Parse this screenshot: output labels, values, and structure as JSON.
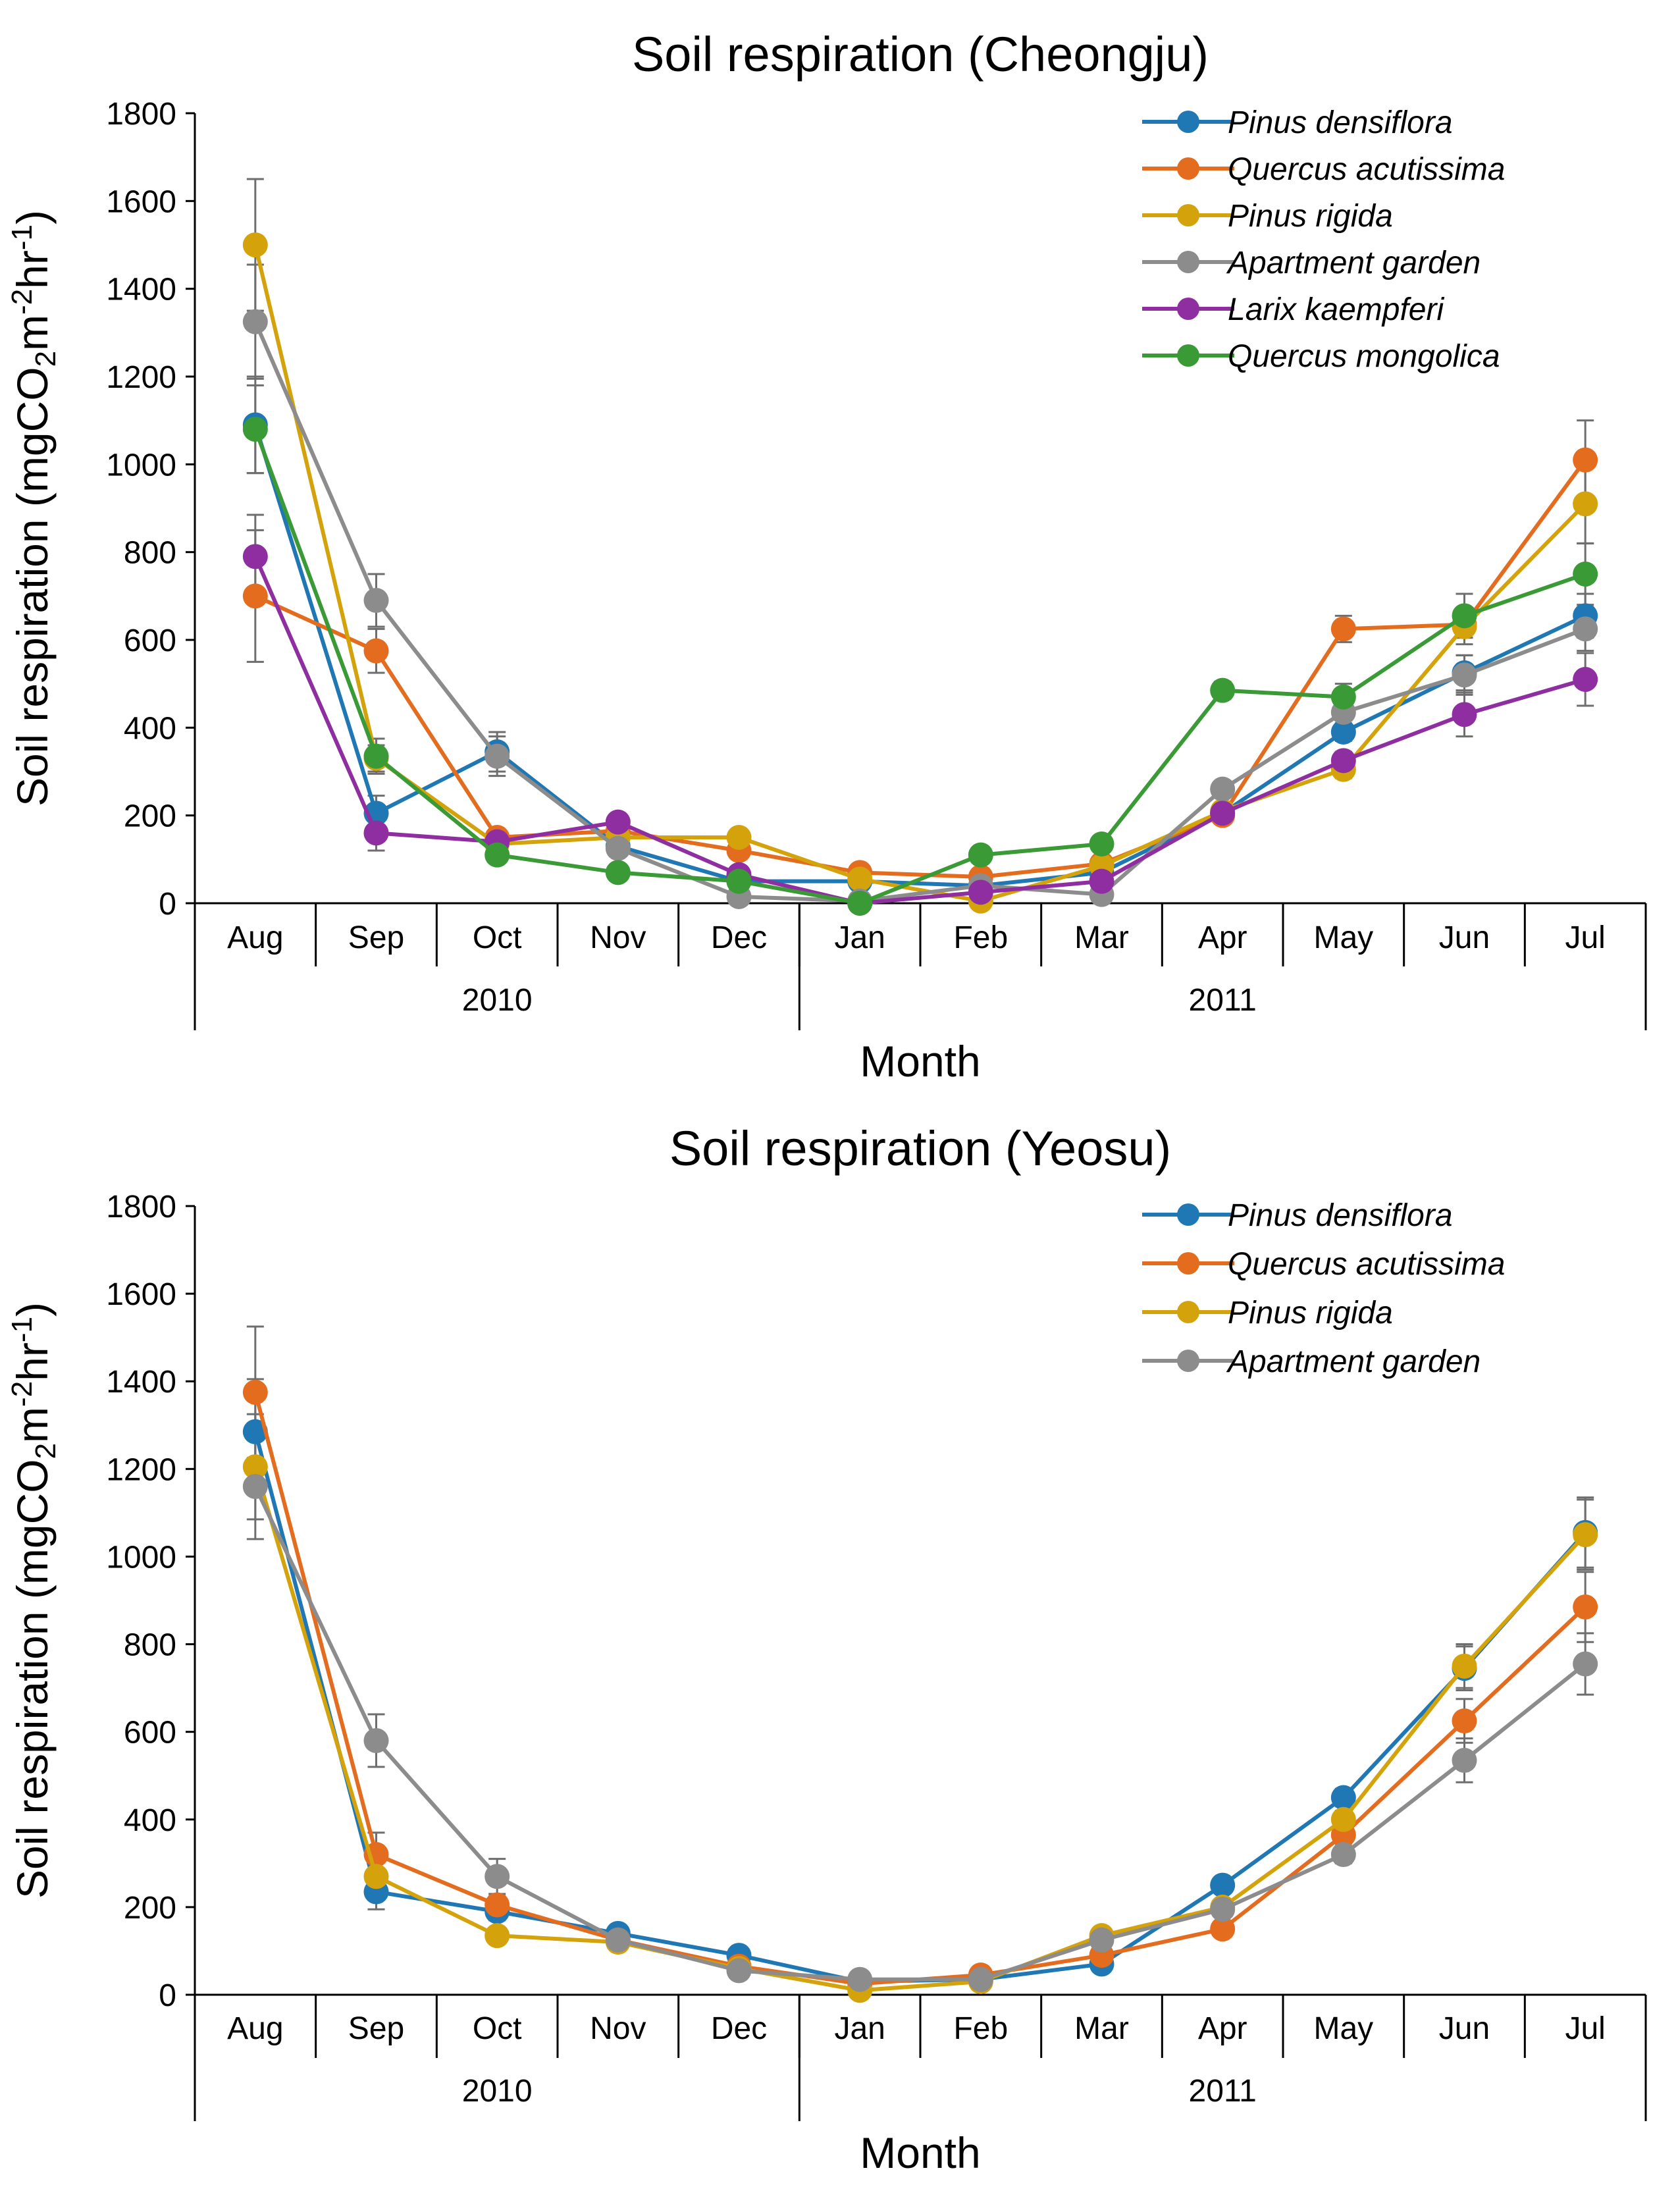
{
  "chart_data": [
    {
      "type": "line",
      "title": "Soil respiration (Cheongju)",
      "ylabel_main": "Soil respiration (mgCO",
      "ylabel_sub": "2",
      "ylabel_m": "m",
      "ylabel_sup1": "-2",
      "ylabel_hr": "hr",
      "ylabel_sup2": "-1",
      "ylabel_close": ")",
      "xlabel": "Month",
      "ylim": [
        0,
        1800
      ],
      "yticks": [
        "0",
        "200",
        "400",
        "600",
        "800",
        "1000",
        "1200",
        "1400",
        "1600",
        "1800"
      ],
      "categories": [
        "Aug",
        "Sep",
        "Oct",
        "Nov",
        "Dec",
        "Jan",
        "Feb",
        "Mar",
        "Apr",
        "May",
        "Jun",
        "Jul"
      ],
      "years": [
        {
          "label": "2010",
          "months": 5
        },
        {
          "label": "2011",
          "months": 7
        }
      ],
      "legend_position": "top-right",
      "series": [
        {
          "name": "Pinus densiflora",
          "color": "#1f77b4",
          "values": [
            1090,
            205,
            345,
            130,
            50,
            50,
            40,
            70,
            205,
            390,
            525,
            655
          ],
          "err": [
            110,
            40,
            45,
            0,
            0,
            0,
            0,
            0,
            0,
            20,
            40,
            50
          ]
        },
        {
          "name": "Quercus acutissima",
          "color": "#e36c1f",
          "values": [
            700,
            575,
            150,
            165,
            120,
            70,
            60,
            90,
            200,
            625,
            635,
            1010
          ],
          "err": [
            150,
            50,
            0,
            0,
            0,
            0,
            0,
            0,
            0,
            30,
            30,
            90
          ]
        },
        {
          "name": "Pinus rigida",
          "color": "#d4a20a",
          "values": [
            1500,
            330,
            135,
            150,
            150,
            55,
            5,
            85,
            210,
            305,
            630,
            910
          ],
          "err": [
            150,
            30,
            0,
            0,
            0,
            0,
            0,
            0,
            0,
            20,
            40,
            90
          ]
        },
        {
          "name": "Apartment garden",
          "color": "#8c8c8c",
          "values": [
            1325,
            690,
            335,
            125,
            15,
            5,
            40,
            20,
            260,
            435,
            520,
            625
          ],
          "err": [
            130,
            60,
            45,
            0,
            0,
            0,
            0,
            0,
            0,
            30,
            45,
            50
          ]
        },
        {
          "name": "Larix kaempferi",
          "color": "#8e2ea0",
          "values": [
            790,
            160,
            140,
            185,
            65,
            0,
            25,
            50,
            205,
            325,
            430,
            510
          ],
          "err": [
            95,
            40,
            0,
            0,
            0,
            0,
            0,
            0,
            0,
            20,
            50,
            60
          ]
        },
        {
          "name": "Quercus mongolica",
          "color": "#3a9a35",
          "values": [
            1080,
            335,
            110,
            70,
            50,
            0,
            110,
            135,
            485,
            470,
            655,
            750
          ],
          "err": [
            100,
            40,
            0,
            0,
            0,
            0,
            0,
            0,
            20,
            30,
            50,
            70
          ]
        }
      ]
    },
    {
      "type": "line",
      "title": "Soil respiration (Yeosu)",
      "ylabel_main": "Soil respiration (mgCO",
      "ylabel_sub": "2",
      "ylabel_m": "m",
      "ylabel_sup1": "-2",
      "ylabel_hr": "hr",
      "ylabel_sup2": "-1",
      "ylabel_close": ")",
      "xlabel": "Month",
      "ylim": [
        0,
        1800
      ],
      "yticks": [
        "0",
        "200",
        "400",
        "600",
        "800",
        "1000",
        "1200",
        "1400",
        "1600",
        "1800"
      ],
      "categories": [
        "Aug",
        "Sep",
        "Oct",
        "Nov",
        "Dec",
        "Jan",
        "Feb",
        "Mar",
        "Apr",
        "May",
        "Jun",
        "Jul"
      ],
      "years": [
        {
          "label": "2010",
          "months": 5
        },
        {
          "label": "2011",
          "months": 7
        }
      ],
      "legend_position": "top-right",
      "series": [
        {
          "name": "Pinus densiflora",
          "color": "#1f77b4",
          "values": [
            1285,
            235,
            190,
            140,
            90,
            30,
            35,
            70,
            250,
            450,
            745,
            1055
          ],
          "err": [
            120,
            40,
            20,
            0,
            0,
            0,
            0,
            0,
            0,
            20,
            50,
            80
          ]
        },
        {
          "name": "Quercus acutissima",
          "color": "#e36c1f",
          "values": [
            1375,
            320,
            205,
            125,
            65,
            25,
            45,
            90,
            150,
            365,
            625,
            885
          ],
          "err": [
            150,
            50,
            20,
            0,
            0,
            0,
            0,
            0,
            0,
            20,
            50,
            80
          ]
        },
        {
          "name": "Pinus rigida",
          "color": "#d4a20a",
          "values": [
            1205,
            270,
            135,
            120,
            60,
            10,
            30,
            135,
            200,
            400,
            750,
            1050
          ],
          "err": [
            120,
            40,
            0,
            0,
            0,
            0,
            0,
            0,
            0,
            20,
            50,
            80
          ]
        },
        {
          "name": "Apartment garden",
          "color": "#8c8c8c",
          "values": [
            1160,
            580,
            270,
            125,
            55,
            35,
            35,
            125,
            195,
            320,
            535,
            755
          ],
          "err": [
            120,
            60,
            40,
            0,
            0,
            0,
            0,
            0,
            0,
            20,
            50,
            70
          ]
        }
      ]
    }
  ]
}
